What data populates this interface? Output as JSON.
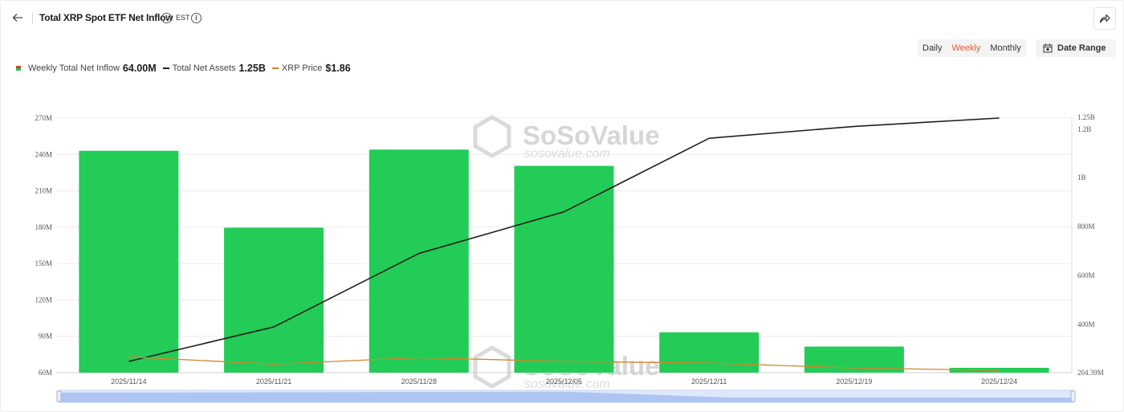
{
  "header": {
    "title": "Total XRP Spot ETF Net Inflow",
    "info_glyph": "i",
    "timezone": "EST",
    "icons": {
      "back": "back-arrow-icon",
      "share": "share-icon",
      "calendar": "calendar-icon"
    }
  },
  "controls": {
    "tabs": [
      {
        "label": "Daily",
        "active": false
      },
      {
        "label": "Weekly",
        "active": true
      },
      {
        "label": "Monthly",
        "active": false
      }
    ],
    "date_range_label": "Date Range",
    "active_color": "#e25a36"
  },
  "legend": [
    {
      "label": "Weekly Total Net Inflow",
      "value": "64.00M",
      "type": "bar"
    },
    {
      "label": "Total Net Assets",
      "value": "1.25B",
      "type": "line",
      "color": "#1f1f1f"
    },
    {
      "label": "XRP Price",
      "value": "$1.86",
      "type": "line",
      "color": "#d2862d"
    }
  ],
  "watermark": {
    "brand": "SoSoValue",
    "domain": "sosovalue.com"
  },
  "chart_data": {
    "type": "bar",
    "categories": [
      "2025/11/14",
      "2025/11/21",
      "2025/11/28",
      "2025/12/05",
      "2025/12/11",
      "2025/12/19",
      "2025/12/24"
    ],
    "series": [
      {
        "name": "Weekly Total Net Inflow",
        "type": "bar",
        "axis": "left",
        "color": "#23cc57",
        "values": [
          243000000,
          179600000,
          244000000,
          230600000,
          93300000,
          81500000,
          64000000
        ]
      },
      {
        "name": "Total Net Assets",
        "type": "line",
        "axis": "right",
        "color": "#1f1f1f",
        "values": [
          250000000,
          390000000,
          690000000,
          860000000,
          1160000000,
          1210000000,
          1250000000
        ]
      },
      {
        "name": "XRP Price",
        "type": "line",
        "axis": "hidden",
        "color": "#d2862d",
        "values": [
          2.21,
          2.02,
          2.19,
          2.09,
          2.05,
          1.92,
          1.86
        ]
      }
    ],
    "y_left": {
      "ticks": [
        60000000,
        90000000,
        120000000,
        150000000,
        180000000,
        210000000,
        240000000,
        270000000
      ],
      "tick_labels": [
        "60M",
        "90M",
        "120M",
        "150M",
        "180M",
        "210M",
        "240M",
        "270M"
      ]
    },
    "y_right": {
      "ticks": [
        204390000,
        400000000,
        600000000,
        800000000,
        1000000000,
        1200000000,
        1250000000
      ],
      "tick_labels": [
        "204.39M",
        "400M",
        "600M",
        "800M",
        "1B",
        "1.2B",
        "1.25B"
      ]
    },
    "grid": true,
    "legend_position": "top-left"
  }
}
